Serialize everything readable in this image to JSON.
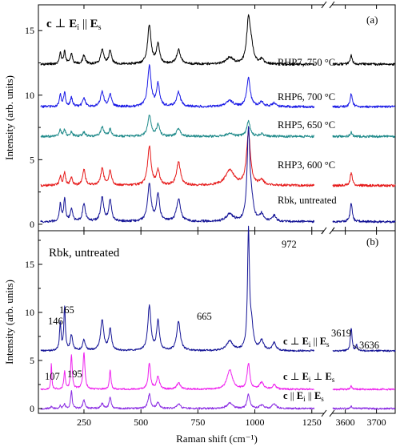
{
  "chart_data": {
    "type": "line",
    "figure": {
      "xlabel": "Raman shift (cm⁻¹)",
      "x_ticks_left": [
        250,
        500,
        750,
        1000,
        1250
      ],
      "x_ticks_right": [
        3600,
        3700
      ],
      "x_break": [
        1300,
        3560
      ],
      "xlim_left": [
        50,
        1300
      ],
      "xlim_right": [
        3560,
        3760
      ]
    },
    "panels": [
      {
        "id": "a",
        "label": "(a)",
        "title": "c ⊥ Ei || Es",
        "title_parts": [
          "c",
          " ⊥ ",
          "E",
          "i",
          " || ",
          "E",
          "s"
        ],
        "ylabel": "Intensity (arb. units)",
        "ylim": [
          -0.5,
          17
        ],
        "y_ticks": [
          0,
          5,
          10,
          15
        ],
        "series": [
          {
            "name": "RHP7, 750 °C",
            "color": "#000000",
            "offset": 12.4,
            "scale": 0.85
          },
          {
            "name": "RHP6, 700 °C",
            "color": "#1a1ae6",
            "offset": 9.1,
            "scale": 0.75
          },
          {
            "name": "RHP5, 650 °C",
            "color": "#1f8a8a",
            "offset": 6.8,
            "scale": 0.45
          },
          {
            "name": "RHP3, 600 °C",
            "color": "#e61a1a",
            "offset": 3.0,
            "scale": 0.7
          },
          {
            "name": "Rbk, untreated",
            "color": "#141496",
            "offset": 0.2,
            "scale": 1.1
          }
        ]
      },
      {
        "id": "b",
        "label": "(b)",
        "title": "Rbk, untreated",
        "ylabel": "Intensity (arb. units)",
        "ylim": [
          -0.5,
          18.5
        ],
        "y_ticks": [
          0,
          5,
          10,
          15
        ],
        "series": [
          {
            "name": "c ⊥ Ei || Es",
            "name_parts": [
              "c",
              " ⊥ ",
              "E",
              "i",
              " || ",
              "E",
              "s"
            ],
            "color": "#141496",
            "offset": 6.0,
            "scale": 1.0
          },
          {
            "name": "c ⊥ Ei ⊥ Es",
            "name_parts": [
              "c",
              " ⊥ ",
              "E",
              "i",
              " ⊥ ",
              "E",
              "s"
            ],
            "color": "#ee22ee",
            "offset": 2.0,
            "scale": 0.45
          },
          {
            "name": "c || Ei || Es",
            "name_parts": [
              "c",
              " || ",
              "E",
              "i",
              " || ",
              "E",
              "s"
            ],
            "color": "#8a2be2",
            "offset": 0.0,
            "scale": 0.42
          }
        ],
        "peak_labels": [
          "146",
          "165",
          "665",
          "972",
          "3619",
          "3636",
          "107",
          "195"
        ]
      }
    ],
    "peaks_cm1": [
      107,
      146,
      165,
      195,
      250,
      330,
      365,
      537,
      575,
      665,
      890,
      972,
      1030,
      1085,
      3619,
      3636
    ]
  }
}
